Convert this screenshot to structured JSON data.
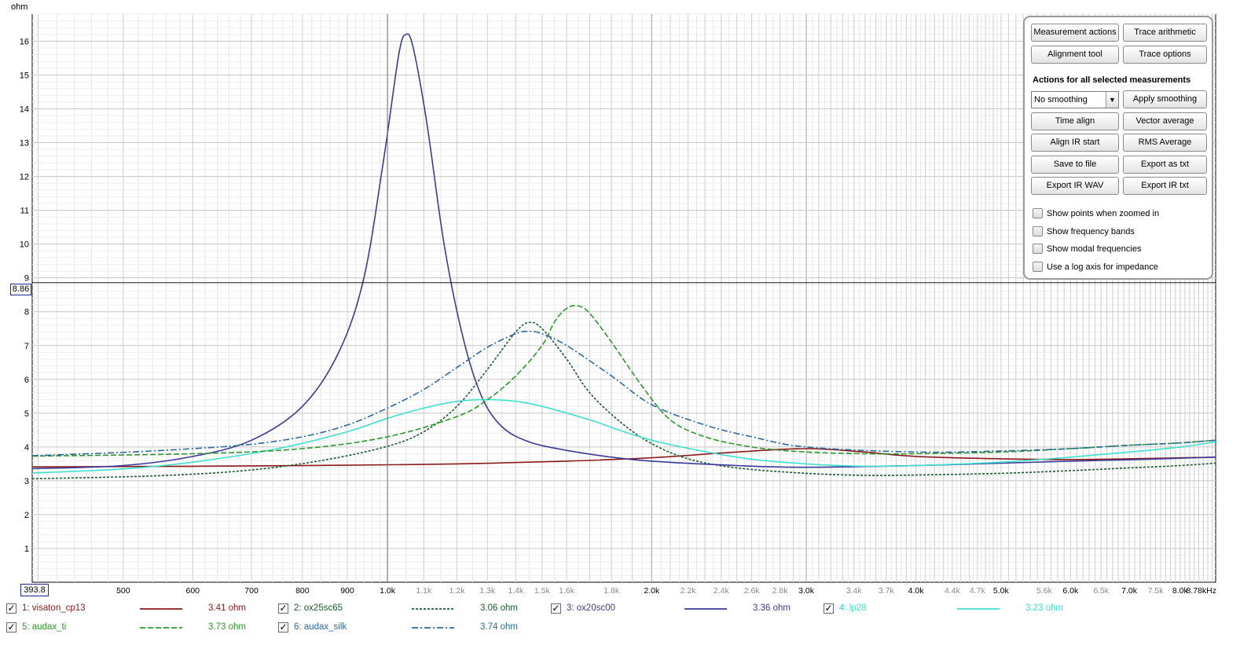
{
  "chart_data": {
    "type": "line",
    "ylabel": "ohm",
    "xscale": "log",
    "xlim": [
      393.8,
      8780
    ],
    "ylim": [
      0,
      16.8
    ],
    "grid": true,
    "y_ticks": [
      "1",
      "2",
      "3",
      "4",
      "5",
      "6",
      "7",
      "8",
      "9",
      "10",
      "11",
      "12",
      "13",
      "14",
      "15",
      "16"
    ],
    "x_ticks": [
      {
        "v": 500,
        "t": "500",
        "b": true
      },
      {
        "v": 600,
        "t": "600",
        "b": true
      },
      {
        "v": 700,
        "t": "700",
        "b": true
      },
      {
        "v": 800,
        "t": "800",
        "b": true
      },
      {
        "v": 900,
        "t": "900",
        "b": true
      },
      {
        "v": 1000,
        "t": "1.0k",
        "b": true
      },
      {
        "v": 1100,
        "t": "1.1k",
        "b": false
      },
      {
        "v": 1200,
        "t": "1.2k",
        "b": false
      },
      {
        "v": 1300,
        "t": "1.3k",
        "b": false
      },
      {
        "v": 1400,
        "t": "1.4k",
        "b": false
      },
      {
        "v": 1500,
        "t": "1.5k",
        "b": false
      },
      {
        "v": 1600,
        "t": "1.6k",
        "b": false
      },
      {
        "v": 1800,
        "t": "1.8k",
        "b": false
      },
      {
        "v": 2000,
        "t": "2.0k",
        "b": true
      },
      {
        "v": 2200,
        "t": "2.2k",
        "b": false
      },
      {
        "v": 2400,
        "t": "2.4k",
        "b": false
      },
      {
        "v": 2600,
        "t": "2.6k",
        "b": false
      },
      {
        "v": 2800,
        "t": "2.8k",
        "b": false
      },
      {
        "v": 3000,
        "t": "3.0k",
        "b": true
      },
      {
        "v": 3400,
        "t": "3.4k",
        "b": false
      },
      {
        "v": 3700,
        "t": "3.7k",
        "b": false
      },
      {
        "v": 4000,
        "t": "4.0k",
        "b": true
      },
      {
        "v": 4400,
        "t": "4.4k",
        "b": false
      },
      {
        "v": 4700,
        "t": "4.7k",
        "b": false
      },
      {
        "v": 5000,
        "t": "5.0k",
        "b": true
      },
      {
        "v": 5600,
        "t": "5.6k",
        "b": false
      },
      {
        "v": 6000,
        "t": "6.0k",
        "b": true
      },
      {
        "v": 6500,
        "t": "6.5k",
        "b": false
      },
      {
        "v": 7000,
        "t": "7.0k",
        "b": true
      },
      {
        "v": 7500,
        "t": "7.5k",
        "b": false
      },
      {
        "v": 8000,
        "t": "8.0k",
        "b": true
      },
      {
        "v": 8780,
        "t": "8.78kHz",
        "b": true
      }
    ],
    "cursor": {
      "x": "393.8",
      "y": "8.86",
      "x_value": 1000,
      "y_value": 8.86
    },
    "series": [
      {
        "name": "1: visaton_cp13",
        "value": "3.41 ohm",
        "color": "#8b1a1a",
        "dash": "",
        "points": [
          [
            393.8,
            3.41
          ],
          [
            600,
            3.43
          ],
          [
            900,
            3.46
          ],
          [
            1200,
            3.5
          ],
          [
            1600,
            3.58
          ],
          [
            2000,
            3.68
          ],
          [
            2500,
            3.85
          ],
          [
            3000,
            3.95
          ],
          [
            3500,
            3.85
          ],
          [
            4000,
            3.72
          ],
          [
            5000,
            3.65
          ],
          [
            6000,
            3.63
          ],
          [
            7000,
            3.65
          ],
          [
            8780,
            3.7
          ]
        ]
      },
      {
        "name": "2: ox25sc65",
        "value": "3.06 ohm",
        "color": "#1a5c2e",
        "dash": "3,2",
        "points": [
          [
            393.8,
            3.06
          ],
          [
            550,
            3.15
          ],
          [
            700,
            3.32
          ],
          [
            850,
            3.62
          ],
          [
            1000,
            4.02
          ],
          [
            1100,
            4.45
          ],
          [
            1200,
            5.2
          ],
          [
            1300,
            6.3
          ],
          [
            1400,
            7.4
          ],
          [
            1450,
            7.68
          ],
          [
            1500,
            7.5
          ],
          [
            1600,
            6.6
          ],
          [
            1700,
            5.6
          ],
          [
            1850,
            4.7
          ],
          [
            2000,
            4.1
          ],
          [
            2200,
            3.65
          ],
          [
            2500,
            3.38
          ],
          [
            3000,
            3.22
          ],
          [
            3500,
            3.16
          ],
          [
            4000,
            3.17
          ],
          [
            5000,
            3.22
          ],
          [
            6000,
            3.3
          ],
          [
            7000,
            3.38
          ],
          [
            8000,
            3.45
          ],
          [
            8780,
            3.52
          ]
        ]
      },
      {
        "name": "3: ox20sc00",
        "value": "3.36 ohm",
        "color": "#3a3a9a",
        "dash": "",
        "points": [
          [
            393.8,
            3.36
          ],
          [
            500,
            3.45
          ],
          [
            600,
            3.72
          ],
          [
            700,
            4.2
          ],
          [
            800,
            5.2
          ],
          [
            880,
            6.8
          ],
          [
            940,
            9.0
          ],
          [
            990,
            12.5
          ],
          [
            1030,
            15.6
          ],
          [
            1050,
            16.2
          ],
          [
            1070,
            15.8
          ],
          [
            1110,
            13.5
          ],
          [
            1160,
            10.0
          ],
          [
            1220,
            7.2
          ],
          [
            1280,
            5.5
          ],
          [
            1350,
            4.6
          ],
          [
            1450,
            4.15
          ],
          [
            1600,
            3.9
          ],
          [
            1800,
            3.7
          ],
          [
            2000,
            3.58
          ],
          [
            2500,
            3.45
          ],
          [
            3000,
            3.4
          ],
          [
            4000,
            3.45
          ],
          [
            5000,
            3.52
          ],
          [
            6000,
            3.58
          ],
          [
            7000,
            3.62
          ],
          [
            8780,
            3.7
          ]
        ]
      },
      {
        "name": "4: lp28",
        "value": "3.23 ohm",
        "color": "#3fe0d0",
        "dash": "",
        "points": [
          [
            393.8,
            3.23
          ],
          [
            500,
            3.35
          ],
          [
            600,
            3.55
          ],
          [
            750,
            3.95
          ],
          [
            900,
            4.45
          ],
          [
            1000,
            4.85
          ],
          [
            1100,
            5.15
          ],
          [
            1200,
            5.35
          ],
          [
            1300,
            5.4
          ],
          [
            1400,
            5.35
          ],
          [
            1500,
            5.2
          ],
          [
            1700,
            4.8
          ],
          [
            2000,
            4.2
          ],
          [
            2500,
            3.7
          ],
          [
            3000,
            3.5
          ],
          [
            3500,
            3.43
          ],
          [
            4000,
            3.45
          ],
          [
            5000,
            3.55
          ],
          [
            6000,
            3.7
          ],
          [
            7000,
            3.85
          ],
          [
            8000,
            4.0
          ],
          [
            8780,
            4.15
          ]
        ]
      },
      {
        "name": "5: audax_ti",
        "value": "3.73 ohm",
        "color": "#2a9a2a",
        "dash": "7,3",
        "points": [
          [
            393.8,
            3.73
          ],
          [
            600,
            3.8
          ],
          [
            800,
            3.95
          ],
          [
            1000,
            4.3
          ],
          [
            1200,
            4.9
          ],
          [
            1300,
            5.4
          ],
          [
            1400,
            6.1
          ],
          [
            1500,
            7.0
          ],
          [
            1550,
            7.7
          ],
          [
            1600,
            8.1
          ],
          [
            1650,
            8.17
          ],
          [
            1700,
            7.95
          ],
          [
            1800,
            7.1
          ],
          [
            1950,
            5.8
          ],
          [
            2100,
            4.8
          ],
          [
            2300,
            4.3
          ],
          [
            2600,
            4.0
          ],
          [
            3000,
            3.85
          ],
          [
            3500,
            3.8
          ],
          [
            4000,
            3.8
          ],
          [
            5000,
            3.85
          ],
          [
            6000,
            3.95
          ],
          [
            7000,
            4.05
          ],
          [
            8000,
            4.12
          ],
          [
            8780,
            4.2
          ]
        ]
      },
      {
        "name": "6: audax_silk",
        "value": "3.74 ohm",
        "color": "#2a6aa0",
        "dash": "8,3,2,3",
        "points": [
          [
            393.8,
            3.74
          ],
          [
            500,
            3.84
          ],
          [
            600,
            3.95
          ],
          [
            700,
            4.08
          ],
          [
            800,
            4.3
          ],
          [
            900,
            4.65
          ],
          [
            1000,
            5.15
          ],
          [
            1100,
            5.7
          ],
          [
            1200,
            6.35
          ],
          [
            1300,
            6.95
          ],
          [
            1400,
            7.35
          ],
          [
            1450,
            7.42
          ],
          [
            1500,
            7.35
          ],
          [
            1600,
            7.0
          ],
          [
            1800,
            6.1
          ],
          [
            2000,
            5.25
          ],
          [
            2300,
            4.65
          ],
          [
            2600,
            4.3
          ],
          [
            3000,
            4.0
          ],
          [
            4000,
            3.85
          ],
          [
            5000,
            3.88
          ],
          [
            6000,
            3.95
          ],
          [
            7000,
            4.05
          ],
          [
            8000,
            4.12
          ],
          [
            8780,
            4.2
          ]
        ]
      }
    ]
  },
  "panel": {
    "measurement_actions": "Measurement actions",
    "trace_arithmetic": "Trace arithmetic",
    "alignment_tool": "Alignment tool",
    "trace_options": "Trace options",
    "heading": "Actions for all selected measurements",
    "smoothing_value": "No  smoothing",
    "apply_smoothing": "Apply smoothing",
    "time_align": "Time align",
    "vector_average": "Vector average",
    "align_ir_start": "Align IR start",
    "rms_average": "RMS Average",
    "save_to_file": "Save to file",
    "export_as_txt": "Export as txt",
    "export_ir_wav": "Export IR WAV",
    "export_ir_txt": "Export IR txt",
    "show_points": "Show points when zoomed in",
    "show_bands": "Show frequency bands",
    "show_modal": "Show modal frequencies",
    "log_axis": "Use a log axis for impedance"
  }
}
